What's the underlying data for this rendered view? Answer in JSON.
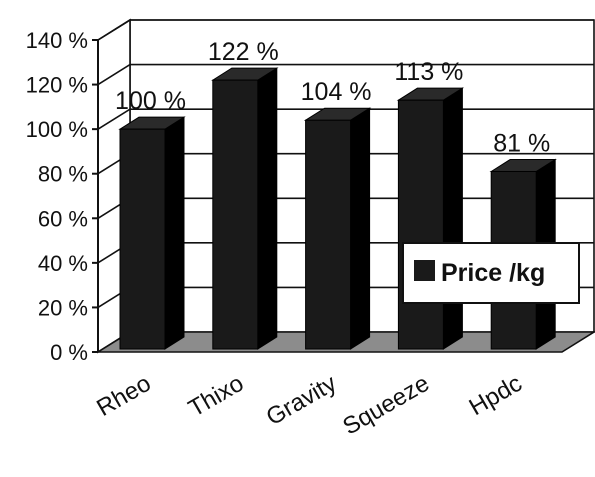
{
  "chart_data": {
    "type": "bar",
    "projection": "3d",
    "categories": [
      "Rheo",
      "Thixo",
      "Gravity",
      "Squeeze",
      "Hpdc"
    ],
    "series": [
      {
        "name": "Price/kg",
        "values": [
          100,
          122,
          104,
          113,
          81
        ]
      }
    ],
    "data_labels": [
      "100 %",
      "122 %",
      "104 %",
      "113 %",
      "81 %"
    ],
    "y_tick_labels": [
      "0 %",
      "20 %",
      "40 %",
      "60 %",
      "80 %",
      "100 %",
      "120 %",
      "140 %"
    ],
    "ylim": [
      0,
      140
    ],
    "y_tick_step": 20,
    "legend_label": "Price /kg",
    "legend_position": "right",
    "grid": true,
    "colors": {
      "bar": "#1a1a1a",
      "floor": "#8c8c8c",
      "grid": "#111111"
    }
  }
}
